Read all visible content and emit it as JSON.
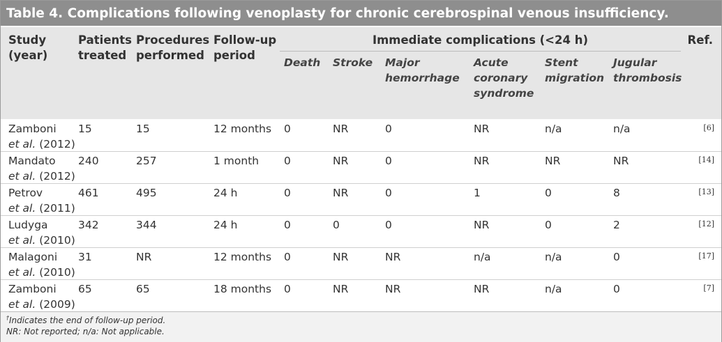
{
  "title": "Table 4. Complications following venoplasty for chronic cerebrospinal venous insufficiency.",
  "header": {
    "columns": [
      {
        "lines": [
          "Study",
          "(year)"
        ]
      },
      {
        "lines": [
          "Patients",
          "treated"
        ]
      },
      {
        "lines": [
          "Procedures",
          "performed"
        ]
      },
      {
        "lines": [
          "Follow-up",
          "period"
        ]
      }
    ],
    "group": "Immediate complications (<24 h)",
    "subcolumns": [
      {
        "lines": [
          "Death"
        ]
      },
      {
        "lines": [
          "Stroke"
        ]
      },
      {
        "lines": [
          "Major",
          "hemorrhage"
        ]
      },
      {
        "lines": [
          "Acute",
          "coronary",
          "syndrome"
        ]
      },
      {
        "lines": [
          "Stent",
          "migration"
        ]
      },
      {
        "lines": [
          "Jugular",
          "thrombosis"
        ]
      }
    ],
    "ref": "Ref."
  },
  "rows": [
    {
      "study": {
        "author": "Zamboni",
        "etal": "et al.",
        "year": "(2012)"
      },
      "cells": [
        "15",
        "15",
        "12 months",
        "0",
        "NR",
        "0",
        "NR",
        "n/a",
        "n/a"
      ],
      "ref": "[6]"
    },
    {
      "study": {
        "author": "Mandato",
        "etal": "et al.",
        "year": "(2012)"
      },
      "cells": [
        "240",
        "257",
        "1 month",
        "0",
        "NR",
        "0",
        "NR",
        "NR",
        "NR"
      ],
      "ref": "[14]"
    },
    {
      "study": {
        "author": "Petrov",
        "etal": "et al.",
        "year": "(2011)"
      },
      "cells": [
        "461",
        "495",
        "24 h",
        "0",
        "NR",
        "0",
        "1",
        "0",
        "8"
      ],
      "ref": "[13]"
    },
    {
      "study": {
        "author": "Ludyga",
        "etal": "et al.",
        "year": "(2010)"
      },
      "cells": [
        "342",
        "344",
        "24 h",
        "0",
        "0",
        "0",
        "NR",
        "0",
        "2"
      ],
      "ref": "[12]"
    },
    {
      "study": {
        "author": "Malagoni",
        "etal": "et al.",
        "year": "(2010)"
      },
      "cells": [
        "31",
        "NR",
        "12 months",
        "0",
        "NR",
        "NR",
        "n/a",
        "n/a",
        "0"
      ],
      "ref": "[17]"
    },
    {
      "study": {
        "author": "Zamboni",
        "etal": "et al.",
        "year": "(2009)"
      },
      "cells": [
        "65",
        "65",
        "18 months",
        "0",
        "NR",
        "NR",
        "NR",
        "n/a",
        "0"
      ],
      "ref": "[7]"
    }
  ],
  "footnote_mark": "†",
  "footnotes": [
    "Indicates the end of follow-up period.",
    "NR: Not reported; n/a: Not applicable."
  ]
}
